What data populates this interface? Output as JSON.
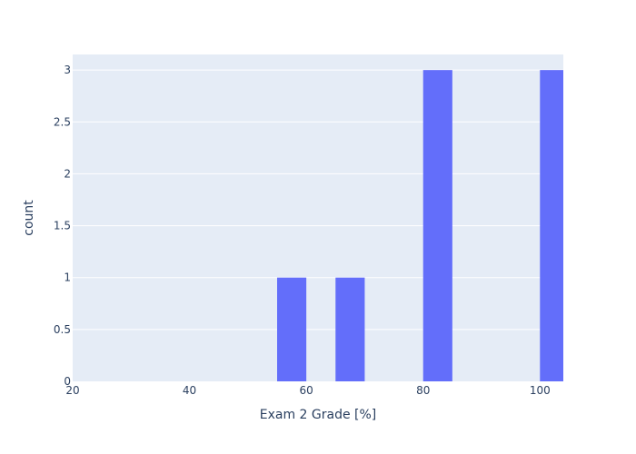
{
  "chart_data": {
    "type": "bar",
    "xlabel": "Exam 2 Grade [%]",
    "ylabel": "count",
    "xlim": [
      20,
      104
    ],
    "ylim": [
      0,
      3.15
    ],
    "x_ticks": [
      20,
      40,
      60,
      80,
      100
    ],
    "x_tick_labels": [
      "20",
      "40",
      "60",
      "80",
      "100"
    ],
    "y_ticks": [
      0,
      0.5,
      1,
      1.5,
      2,
      2.5,
      3
    ],
    "y_tick_labels": [
      "0",
      "0.5",
      "1",
      "1.5",
      "2",
      "2.5",
      "3"
    ],
    "bin_width": 5,
    "bins": [
      {
        "start": 55,
        "end": 60,
        "count": 1
      },
      {
        "start": 65,
        "end": 70,
        "count": 1
      },
      {
        "start": 80,
        "end": 85,
        "count": 3
      },
      {
        "start": 100,
        "end": 105,
        "count": 3
      }
    ],
    "grid": true,
    "colors": {
      "bar": "#636efa",
      "plot_background": "#e5ecf6",
      "grid": "#ffffff",
      "text": "#2a3f5f"
    }
  }
}
